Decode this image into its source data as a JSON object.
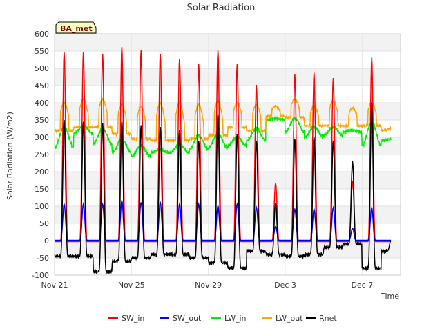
{
  "chart_data": {
    "type": "line",
    "title": "Solar Radiation",
    "xlabel": "Time",
    "ylabel": "Solar Radiation (W/m2)",
    "badge": "BA_met",
    "ylim": [
      -100,
      600
    ],
    "xlim": [
      "2021-11-21",
      "2021-12-09"
    ],
    "yticks": [
      "-100",
      "-50",
      "0",
      "50",
      "100",
      "150",
      "200",
      "250",
      "300",
      "350",
      "400",
      "450",
      "500",
      "550",
      "600"
    ],
    "xticks": [
      {
        "label": "Nov 21",
        "date": "2021-11-21"
      },
      {
        "label": "Nov 25",
        "date": "2021-11-25"
      },
      {
        "label": "Nov 29",
        "date": "2021-11-29"
      },
      {
        "label": "Dec 3",
        "date": "2021-12-03"
      },
      {
        "label": "Dec 7",
        "date": "2021-12-07"
      }
    ],
    "grid": true,
    "legend_position": "bottom",
    "days": [
      "2021-11-21",
      "2021-11-22",
      "2021-11-23",
      "2021-11-24",
      "2021-11-25",
      "2021-11-26",
      "2021-11-27",
      "2021-11-28",
      "2021-11-29",
      "2021-11-30",
      "2021-12-01",
      "2021-12-02",
      "2021-12-03",
      "2021-12-04",
      "2021-12-05",
      "2021-12-06",
      "2021-12-07",
      "2021-12-08"
    ],
    "series": [
      {
        "name": "SW_in",
        "color": "#ff0000",
        "daily_peak": [
          550,
          550,
          545,
          565,
          555,
          545,
          530,
          515,
          555,
          515,
          455,
          170,
          485,
          490,
          475,
          175,
          535,
          0
        ]
      },
      {
        "name": "SW_out",
        "color": "#0000ff",
        "daily_peak": [
          105,
          105,
          105,
          115,
          110,
          110,
          105,
          105,
          100,
          105,
          95,
          40,
          90,
          90,
          95,
          35,
          95,
          0
        ]
      },
      {
        "name": "LW_in",
        "color": "#00ee00",
        "daily_peak": [
          330,
          335,
          325,
          295,
          275,
          265,
          280,
          305,
          310,
          300,
          325,
          355,
          355,
          330,
          330,
          320,
          345,
          295
        ],
        "daily_low": [
          270,
          310,
          280,
          255,
          245,
          255,
          255,
          265,
          270,
          275,
          290,
          350,
          315,
          300,
          305,
          315,
          275,
          290
        ]
      },
      {
        "name": "LW_out",
        "color": "#ffa500",
        "daily_peak": [
          400,
          410,
          410,
          395,
          390,
          400,
          400,
          395,
          405,
          400,
          395,
          390,
          410,
          390,
          405,
          385,
          400,
          325
        ],
        "daily_low": [
          315,
          325,
          325,
          305,
          290,
          285,
          285,
          290,
          300,
          325,
          315,
          360,
          355,
          330,
          330,
          330,
          330,
          320
        ]
      },
      {
        "name": "Rnet",
        "color": "#000000",
        "daily_peak": [
          350,
          345,
          340,
          345,
          335,
          330,
          320,
          290,
          365,
          310,
          290,
          110,
          295,
          300,
          290,
          230,
          400,
          0
        ],
        "night_low": [
          -45,
          -45,
          -90,
          -60,
          -50,
          -40,
          -40,
          -50,
          -65,
          -80,
          -30,
          -40,
          -45,
          -40,
          -20,
          -10,
          -80,
          -30
        ]
      }
    ]
  }
}
